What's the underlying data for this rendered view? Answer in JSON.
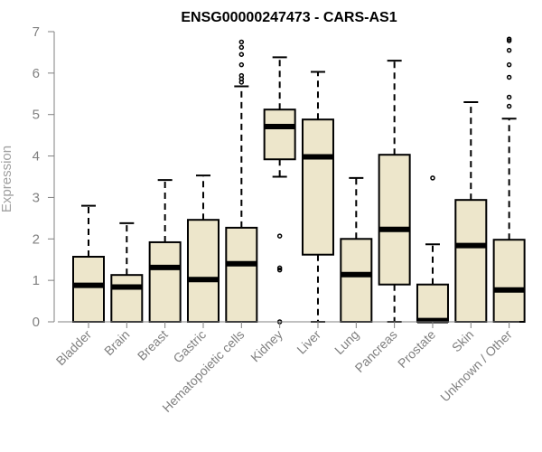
{
  "chart_data": {
    "type": "boxplot",
    "title": "ENSG00000247473 - CARS-AS1",
    "xlabel": "",
    "ylabel": "Expression",
    "ylim": [
      0,
      7
    ],
    "yticks": [
      0,
      1,
      2,
      3,
      4,
      5,
      6,
      7
    ],
    "grid": false,
    "box_fill": "#ede6cb",
    "box_stroke": "#000000",
    "label_color": "#808080",
    "categories": [
      "Bladder",
      "Brain",
      "Breast",
      "Gastric",
      "Hematopoietic cells",
      "Kidney",
      "Liver",
      "Lung",
      "Pancreas",
      "Prostate",
      "Skin",
      "Unknown / Other"
    ],
    "boxes": [
      {
        "category": "Bladder",
        "whisker_low": 0,
        "q1": 0,
        "median": 0.88,
        "q3": 1.57,
        "whisker_high": 2.8,
        "outliers": []
      },
      {
        "category": "Brain",
        "whisker_low": 0,
        "q1": 0,
        "median": 0.84,
        "q3": 1.13,
        "whisker_high": 2.38,
        "outliers": []
      },
      {
        "category": "Breast",
        "whisker_low": 0,
        "q1": 0,
        "median": 1.31,
        "q3": 1.92,
        "whisker_high": 3.42,
        "outliers": []
      },
      {
        "category": "Gastric",
        "whisker_low": 0,
        "q1": 0,
        "median": 1.02,
        "q3": 2.46,
        "whisker_high": 3.53,
        "outliers": []
      },
      {
        "category": "Hematopoietic cells",
        "whisker_low": 0,
        "q1": 0,
        "median": 1.4,
        "q3": 2.27,
        "whisker_high": 5.68,
        "outliers": [
          5.78,
          5.86,
          5.94,
          6.2,
          6.45,
          6.62,
          6.75
        ]
      },
      {
        "category": "Kidney",
        "whisker_low": 3.5,
        "q1": 3.92,
        "median": 4.71,
        "q3": 5.12,
        "whisker_high": 6.38,
        "outliers": [
          0,
          1.25,
          1.3,
          2.07
        ]
      },
      {
        "category": "Liver",
        "whisker_low": 0,
        "q1": 1.62,
        "median": 3.98,
        "q3": 4.88,
        "whisker_high": 6.03,
        "outliers": []
      },
      {
        "category": "Lung",
        "whisker_low": 0,
        "q1": 0,
        "median": 1.14,
        "q3": 2.0,
        "whisker_high": 3.47,
        "outliers": []
      },
      {
        "category": "Pancreas",
        "whisker_low": 0,
        "q1": 0.9,
        "median": 2.23,
        "q3": 4.03,
        "whisker_high": 6.3,
        "outliers": []
      },
      {
        "category": "Prostate",
        "whisker_low": 0,
        "q1": 0,
        "median": 0.03,
        "q3": 0.9,
        "whisker_high": 1.87,
        "outliers": [
          3.47
        ]
      },
      {
        "category": "Skin",
        "whisker_low": 0,
        "q1": 0,
        "median": 1.84,
        "q3": 2.94,
        "whisker_high": 5.3,
        "outliers": []
      },
      {
        "category": "Unknown / Other",
        "whisker_low": 0,
        "q1": 0,
        "median": 0.77,
        "q3": 1.98,
        "whisker_high": 4.9,
        "outliers": [
          5.2,
          5.42,
          5.9,
          6.2,
          6.55,
          6.78,
          6.82
        ]
      }
    ]
  }
}
